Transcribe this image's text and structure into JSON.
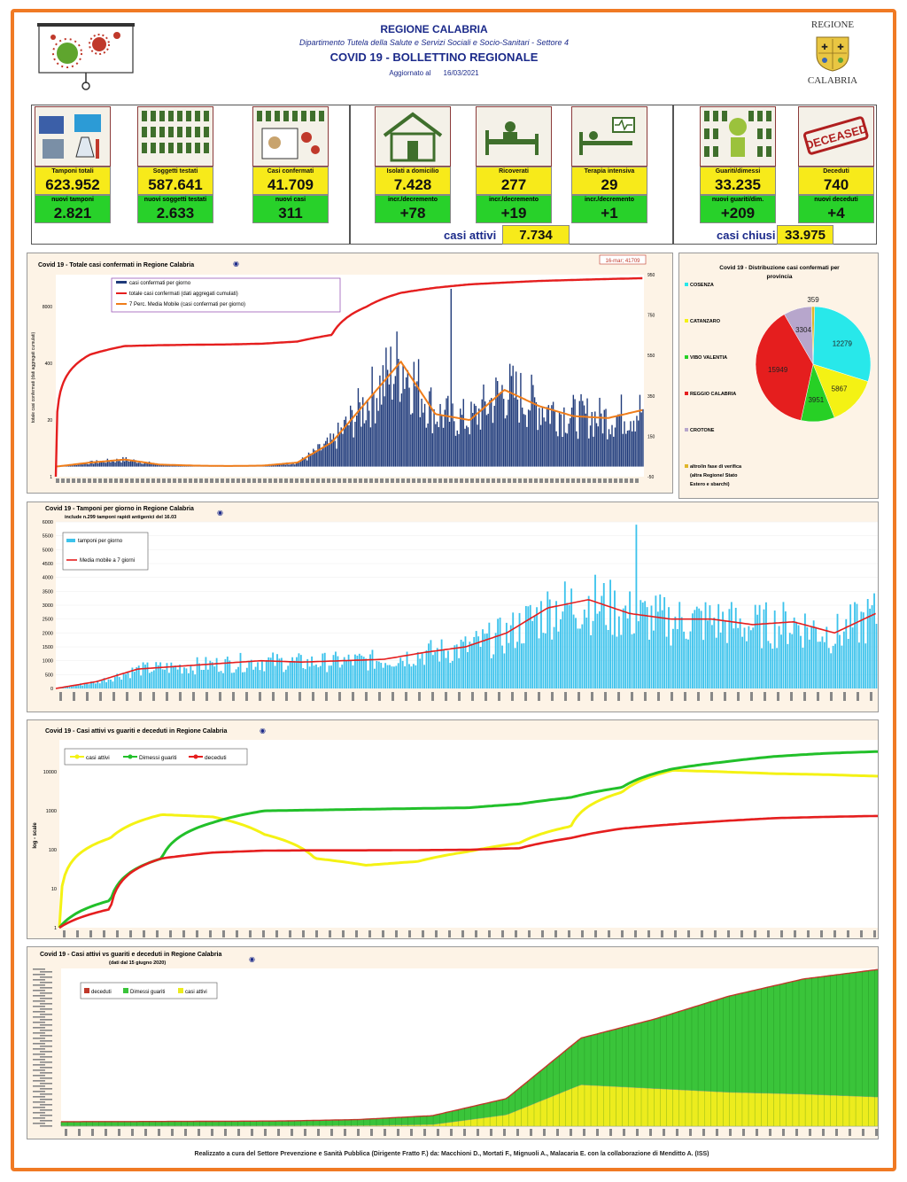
{
  "header": {
    "region": "REGIONE CALABRIA",
    "department": "Dipartimento Tutela della Salute e Servizi Sociali e Socio-Sanitari - Settore 4",
    "bulletin": "COVID 19 - BOLLETTINO REGIONALE",
    "updated_label": "Aggiornato al",
    "updated_date": "16/03/2021",
    "logo_top": "REGIONE",
    "logo_bottom": "CALABRIA"
  },
  "kpis": {
    "tamponi": {
      "label": "Tamponi totali",
      "value": "623.952",
      "sub_label": "nuovi tamponi",
      "sub_value": "2.821"
    },
    "soggetti": {
      "label": "Soggetti testati",
      "value": "587.641",
      "sub_label": "nuovi soggetti testati",
      "sub_value": "2.633"
    },
    "confermati": {
      "label": "Casi confermati",
      "value": "41.709",
      "sub_label": "nuovi casi",
      "sub_value": "311"
    },
    "isolati": {
      "label": "Isolati a domicilio",
      "value": "7.428",
      "sub_label": "incr./decremento",
      "sub_value": "+78"
    },
    "ricoverati": {
      "label": "Ricoverati",
      "value": "277",
      "sub_label": "incr./decremento",
      "sub_value": "+19"
    },
    "terapia": {
      "label": "Terapia intensiva",
      "value": "29",
      "sub_label": "incr./decremento",
      "sub_value": "+1"
    },
    "guariti": {
      "label": "Guariti/dimessi",
      "value": "33.235",
      "sub_label": "nuovi guariti/dim.",
      "sub_value": "+209"
    },
    "deceduti": {
      "label": "Deceduti",
      "value": "740",
      "sub_label": "nuovi deceduti",
      "sub_value": "+4"
    },
    "attivi_label": "casi attivi",
    "attivi_value": "7.734",
    "chiusi_label": "casi chiusi",
    "chiusi_value": "33.975",
    "deceased_stamp": "DECEASED"
  },
  "chart_data": [
    {
      "type": "bar",
      "title": "Covid 19 - Totale casi confermati in Regione Calabria",
      "ylabel": "totale casi confermati (dati aggregati cumulati)",
      "annotation": "16-mar; 41709",
      "legend": [
        "casi confermati per giorno",
        "totale casi confermati (dati aggregati cumulati)",
        "7 Perc. Media Mobile (casi confermati per giorno)"
      ],
      "yticks_left": [
        "8000",
        "400",
        "20",
        "1"
      ],
      "yticks_right": [
        "950",
        "750",
        "550",
        "350",
        "150",
        "-50"
      ],
      "series": [
        {
          "name": "totale casi confermati (dati aggregati cumulati)",
          "values": [
            1,
            700,
            1100,
            1150,
            1180,
            1200,
            1250,
            1400,
            2000,
            9000,
            19000,
            25000,
            30000,
            33000,
            36000,
            38000,
            40000,
            41709
          ]
        },
        {
          "name": "7 Perc. Media Mobile (casi confermati per giorno)",
          "values": [
            0,
            20,
            35,
            10,
            5,
            3,
            5,
            20,
            120,
            320,
            520,
            260,
            230,
            380,
            300,
            250,
            240,
            280
          ]
        }
      ]
    },
    {
      "type": "pie",
      "title": "Covid 19 - Distribuzione casi confermati per provincia",
      "categories": [
        "COSENZA",
        "CATANZARO",
        "VIBO VALENTIA",
        "REGGIO CALABRIA",
        "CROTONE",
        "altro/in fase di verifica (altra Regione/ Stato Estero e sbarchi)"
      ],
      "values": [
        12279,
        5867,
        3951,
        15949,
        3304,
        359
      ],
      "colors": [
        "#28e8ea",
        "#f4f214",
        "#27d025",
        "#e51e1e",
        "#b7a6cc",
        "#e0b62a"
      ]
    },
    {
      "type": "bar",
      "title": "Covid 19 - Tamponi per giorno in Regione Calabria",
      "subtitle": "include n.299 tamponi rapidi antigenici del 16.03",
      "legend": [
        "tamponi per giorno",
        "Media mobile a 7 giorni"
      ],
      "yticks": [
        "0",
        "500",
        "1000",
        "1500",
        "2000",
        "2500",
        "3000",
        "3500",
        "4000",
        "4500",
        "5000",
        "5500",
        "6000"
      ],
      "ylim": [
        0,
        6000
      ],
      "series": [
        {
          "name": "Media mobile a 7 giorni",
          "values": [
            0,
            250,
            700,
            800,
            900,
            1000,
            950,
            1000,
            1050,
            1300,
            1500,
            2000,
            2900,
            3200,
            2700,
            2500,
            2500,
            2300,
            2400,
            2000,
            2700
          ]
        }
      ]
    },
    {
      "type": "line",
      "title": "Covid 19 - Casi attivi vs guariti e deceduti in Regione Calabria",
      "ylabel": "log - scale",
      "yticks": [
        "1",
        "10",
        "100",
        "1000",
        "10000"
      ],
      "series": [
        {
          "name": "casi attivi",
          "values": [
            1,
            200,
            800,
            700,
            250,
            60,
            40,
            50,
            90,
            150,
            400,
            3000,
            11000,
            10000,
            9000,
            8500,
            7734
          ]
        },
        {
          "name": "Dimessi guariti",
          "values": [
            1,
            5,
            60,
            500,
            1000,
            1050,
            1100,
            1150,
            1200,
            1500,
            2200,
            4000,
            12000,
            18000,
            25000,
            30000,
            33235
          ]
        },
        {
          "name": "deceduti",
          "values": [
            1,
            3,
            60,
            85,
            95,
            97,
            97,
            98,
            100,
            110,
            200,
            350,
            450,
            550,
            650,
            700,
            740
          ]
        }
      ]
    },
    {
      "type": "area",
      "title": "Covid 19 - Casi attivi vs guariti e deceduti in Regione Calabria",
      "subtitle": "(dati dal 15 giugno 2020)",
      "legend": [
        "deceduti",
        "Dimessi guariti",
        "casi attivi"
      ],
      "series": [
        {
          "name": "casi attivi",
          "values": [
            60,
            40,
            50,
            90,
            150,
            400,
            3000,
            11000,
            10000,
            9000,
            8500,
            7734
          ]
        },
        {
          "name": "Dimessi guariti",
          "values": [
            1050,
            1100,
            1150,
            1200,
            1500,
            2200,
            4000,
            12000,
            18000,
            25000,
            30000,
            33235
          ]
        },
        {
          "name": "deceduti",
          "values": [
            97,
            97,
            98,
            100,
            110,
            200,
            350,
            450,
            550,
            650,
            700,
            740
          ]
        }
      ]
    }
  ],
  "credits": "Realizzato a cura del Settore Prevenzione e Sanità Pubblica (Dirigente Fratto F.) da: Macchioni D., Mortati F., Mignuoli A., Malacaria E. con la collaborazione di Menditto A. (ISS)"
}
